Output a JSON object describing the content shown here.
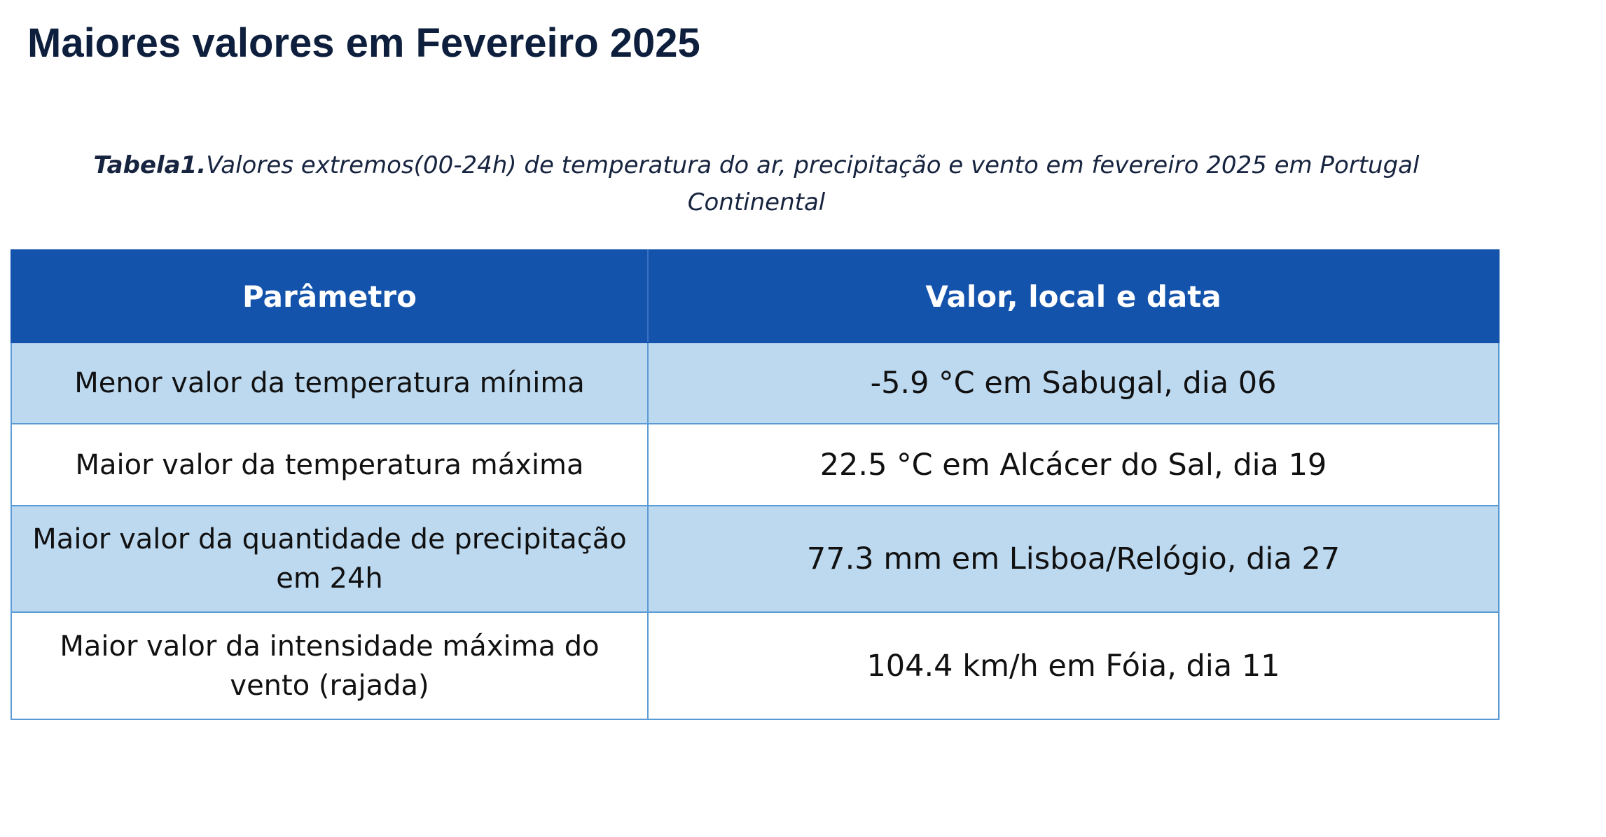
{
  "page": {
    "title": "Maiores valores em Fevereiro 2025"
  },
  "caption": {
    "label": "Tabela1.",
    "text": "Valores extremos(00-24h) de temperatura do ar, precipitação e vento em fevereiro 2025 em Portugal Continental"
  },
  "table": {
    "headers": [
      "Parâmetro",
      "Valor, local e data"
    ],
    "rows": [
      {
        "parameter": "Menor valor da temperatura mínima",
        "value": "-5.9 °C em Sabugal, dia 06"
      },
      {
        "parameter": "Maior valor da temperatura máxima",
        "value": "22.5 °C em Alcácer do Sal, dia 19"
      },
      {
        "parameter": "Maior valor da quantidade de precipitação em 24h",
        "value": "77.3 mm em Lisboa/Relógio, dia 27"
      },
      {
        "parameter": "Maior valor da intensidade máxima do vento (rajada)",
        "value": "104.4 km/h em Fóia, dia 11"
      }
    ]
  },
  "colors": {
    "header_bg": "#1453ab",
    "shaded_row_bg": "#bdd9f0",
    "border": "#5b9bd5",
    "title_text": "#0d1f3c"
  }
}
